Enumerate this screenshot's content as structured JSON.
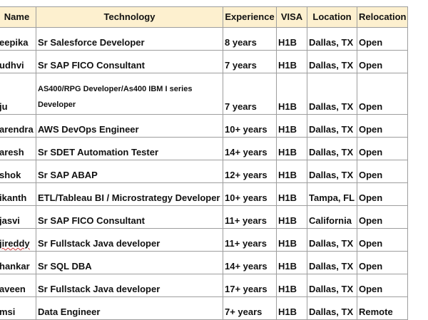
{
  "headers": [
    "Name",
    "Technology",
    "Experience",
    "VISA",
    "Location",
    "Relocation"
  ],
  "rows": [
    {
      "name": "eepika",
      "technology": "Sr Salesforce Developer",
      "experience": "8 years",
      "visa": "H1B",
      "location": "Dallas, TX",
      "relocation": "Open"
    },
    {
      "name": "udhvi",
      "technology": "Sr SAP FICO Consultant",
      "experience": "7 years",
      "visa": "H1B",
      "location": "Dallas, TX",
      "relocation": "Open"
    },
    {
      "name": "ju",
      "technology": "AS400/RPG Developer/As400 IBM I series Developer",
      "experience": "7 years",
      "visa": "H1B",
      "location": "Dallas, TX",
      "relocation": "Open"
    },
    {
      "name": "arendra",
      "technology": "AWS DevOps Engineer",
      "experience": "10+ years",
      "visa": "H1B",
      "location": "Dallas, TX",
      "relocation": "Open"
    },
    {
      "name": "aresh",
      "technology": "Sr SDET Automation Tester",
      "experience": "14+ years",
      "visa": "H1B",
      "location": "Dallas, TX",
      "relocation": "Open"
    },
    {
      "name": "shok",
      "technology": "Sr SAP ABAP",
      "experience": "12+ years",
      "visa": "H1B",
      "location": "Dallas, TX",
      "relocation": "Open"
    },
    {
      "name": "ikanth",
      "technology": "ETL/Tableau BI / Microstrategy Developer",
      "experience": "10+ years",
      "visa": "H1B",
      "location": "Tampa, FL",
      "relocation": "Open"
    },
    {
      "name": "jasvi",
      "technology": "Sr SAP FICO Consultant",
      "experience": "11+ years",
      "visa": "H1B",
      "location": "California",
      "relocation": "Open"
    },
    {
      "name": "jireddy",
      "technology": "Sr Fullstack Java developer",
      "experience": "11+ years",
      "visa": "H1B",
      "location": "Dallas, TX",
      "relocation": "Open"
    },
    {
      "name": "hankar",
      "technology": "Sr SQL DBA",
      "experience": "14+ years",
      "visa": "H1B",
      "location": "Dallas, TX",
      "relocation": "Open"
    },
    {
      "name": "aveen",
      "technology": "Sr Fullstack Java developer",
      "experience": "17+ years",
      "visa": "H1B",
      "location": "Dallas, TX",
      "relocation": "Open"
    },
    {
      "name": "msi",
      "technology": "Data Engineer",
      "experience": "7+ years",
      "visa": "H1B",
      "location": "Dallas, TX",
      "relocation": "Remote"
    }
  ],
  "colors": {
    "header_bg": "#fdf0cf",
    "grid": "#9e9e9e",
    "spell_underline": "#d23b3b"
  }
}
